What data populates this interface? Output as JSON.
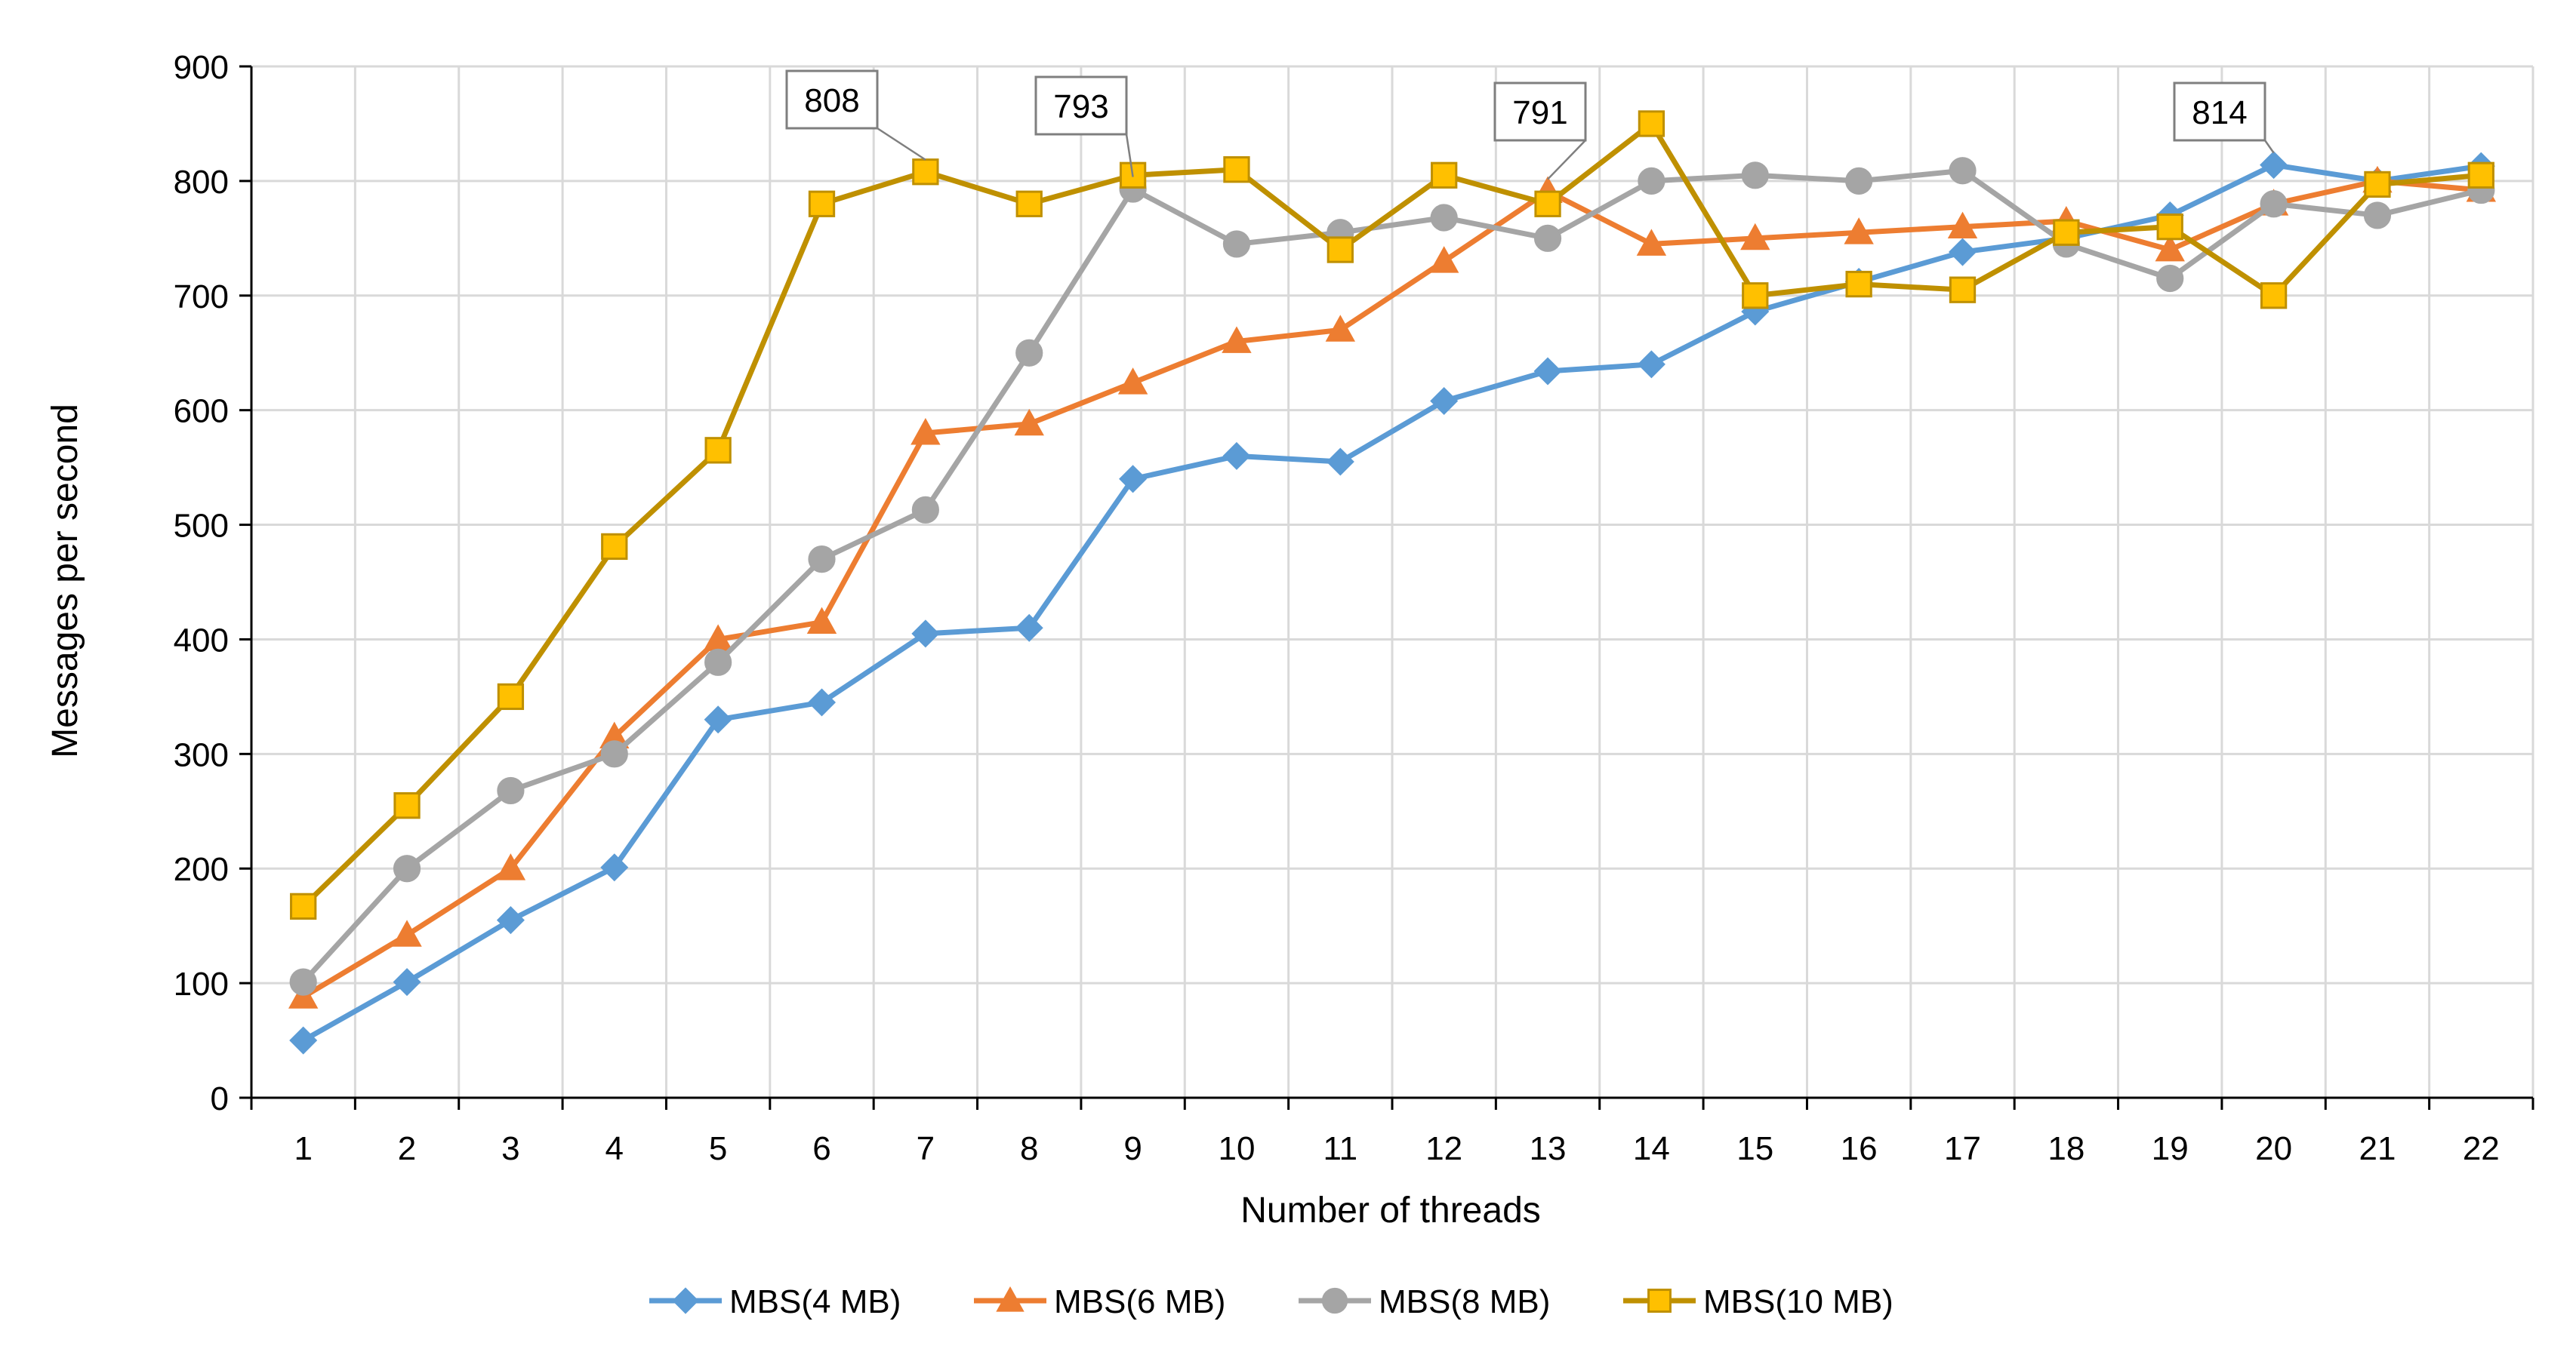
{
  "chart_data": {
    "type": "line",
    "title": "",
    "xlabel": "Number of threads",
    "ylabel": "Messages  per second",
    "x": [
      1,
      2,
      3,
      4,
      5,
      6,
      7,
      8,
      9,
      10,
      11,
      12,
      13,
      14,
      15,
      16,
      17,
      18,
      19,
      20,
      21,
      22
    ],
    "xticks": [
      "1",
      "2",
      "3",
      "4",
      "5",
      "6",
      "7",
      "8",
      "9",
      "10",
      "11",
      "12",
      "13",
      "14",
      "15",
      "16",
      "17",
      "18",
      "19",
      "20",
      "21",
      "22"
    ],
    "ylim": [
      0,
      900
    ],
    "yticks": [
      "0",
      "100",
      "200",
      "300",
      "400",
      "500",
      "600",
      "700",
      "800",
      "900"
    ],
    "grid": true,
    "legend_position": "bottom",
    "series": [
      {
        "name": "MBS(4 MB)",
        "color": "#5B9BD5",
        "marker": "diamond",
        "values": [
          50,
          101,
          155,
          201,
          330,
          345,
          405,
          410,
          540,
          560,
          555,
          608,
          634,
          640,
          686,
          712,
          738,
          750,
          770,
          814,
          800,
          813
        ]
      },
      {
        "name": "MBS(6 MB)",
        "color": "#ED7D31",
        "marker": "triangle",
        "values": [
          88,
          142,
          200,
          315,
          400,
          415,
          580,
          588,
          624,
          660,
          670,
          730,
          791,
          745,
          750,
          755,
          760,
          765,
          740,
          780,
          800,
          792
        ]
      },
      {
        "name": "MBS(8 MB)",
        "color": "#A5A5A5",
        "marker": "circle",
        "values": [
          101,
          200,
          268,
          300,
          380,
          470,
          513,
          650,
          793,
          745,
          755,
          768,
          750,
          800,
          805,
          800,
          809,
          745,
          715,
          780,
          770,
          792
        ]
      },
      {
        "name": "MBS(10 MB)",
        "color": "#FFC000",
        "line_color": "#BF9000",
        "marker": "square",
        "values": [
          167,
          255,
          350,
          481,
          565,
          780,
          808,
          780,
          805,
          810,
          740,
          805,
          780,
          850,
          700,
          710,
          705,
          755,
          760,
          700,
          797,
          805
        ]
      }
    ],
    "annotations": [
      {
        "text": "808",
        "series": 3,
        "x_index": 6
      },
      {
        "text": "793",
        "series": 2,
        "x_index": 8
      },
      {
        "text": "791",
        "series": 1,
        "x_index": 12
      },
      {
        "text": "814",
        "series": 0,
        "x_index": 19
      }
    ]
  }
}
